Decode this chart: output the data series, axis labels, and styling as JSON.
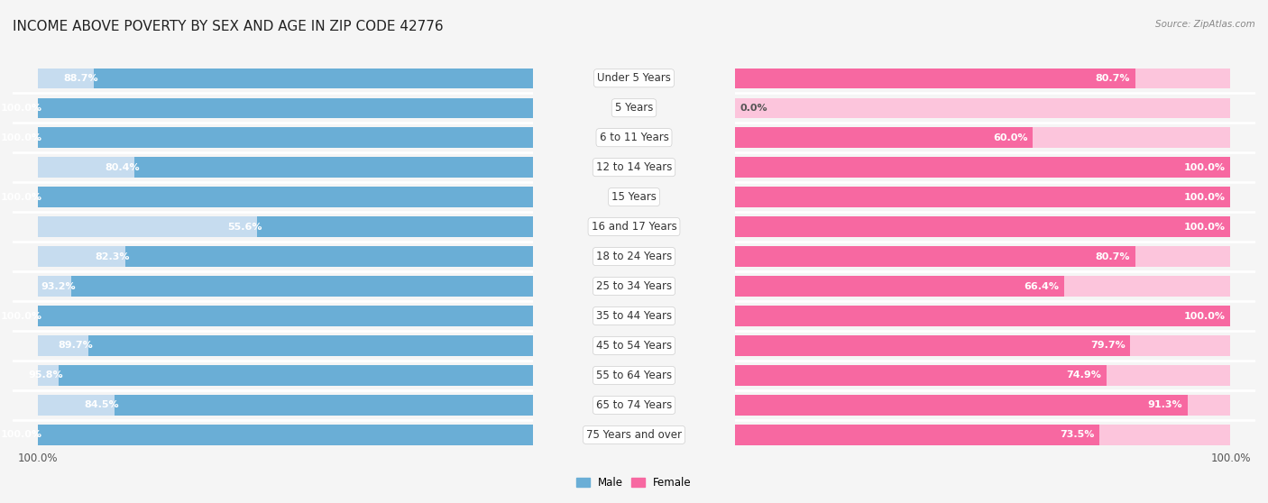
{
  "title": "INCOME ABOVE POVERTY BY SEX AND AGE IN ZIP CODE 42776",
  "source": "Source: ZipAtlas.com",
  "categories": [
    "Under 5 Years",
    "5 Years",
    "6 to 11 Years",
    "12 to 14 Years",
    "15 Years",
    "16 and 17 Years",
    "18 to 24 Years",
    "25 to 34 Years",
    "35 to 44 Years",
    "45 to 54 Years",
    "55 to 64 Years",
    "65 to 74 Years",
    "75 Years and over"
  ],
  "male_values": [
    88.7,
    100.0,
    100.0,
    80.4,
    100.0,
    55.6,
    82.3,
    93.2,
    100.0,
    89.7,
    95.8,
    84.5,
    100.0
  ],
  "female_values": [
    80.7,
    0.0,
    60.0,
    100.0,
    100.0,
    100.0,
    80.7,
    66.4,
    100.0,
    79.7,
    74.9,
    91.3,
    73.5
  ],
  "male_color": "#6aaed6",
  "male_color_light": "#c6dcef",
  "female_color": "#f768a1",
  "female_color_light": "#fcc5dc",
  "background_color": "#f5f5f5",
  "row_bg_color": "#e8e8e8",
  "bar_height": 0.68,
  "title_fontsize": 11,
  "label_fontsize": 8.5,
  "tick_fontsize": 8.5,
  "value_fontsize": 8,
  "cat_fontsize": 8.5
}
